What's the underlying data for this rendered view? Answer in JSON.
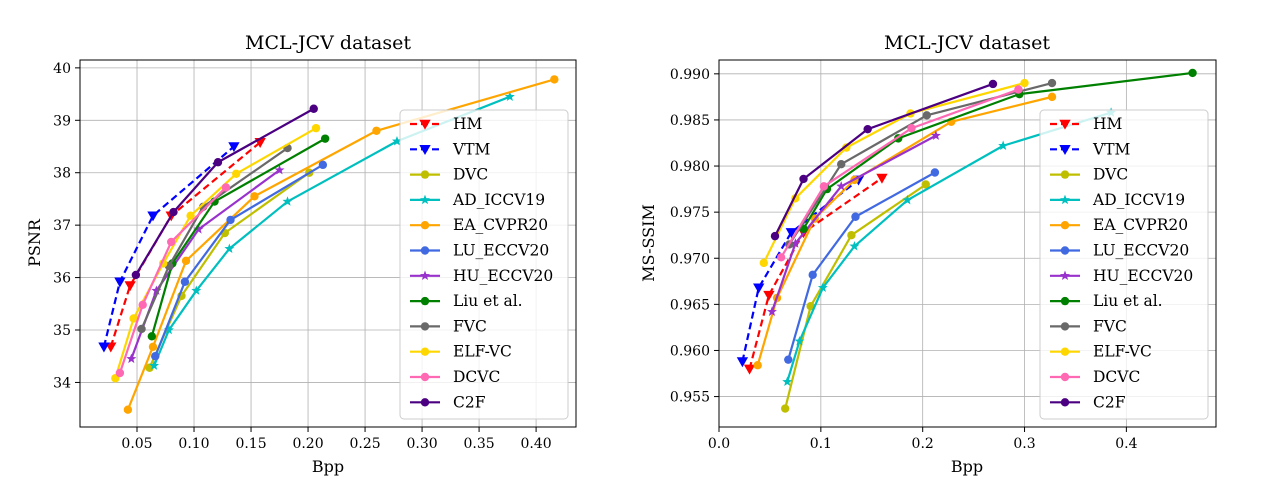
{
  "legend_entries": [
    {
      "name": "HM",
      "color": "#ff0000",
      "marker": "tri-down",
      "dashed": true
    },
    {
      "name": "VTM",
      "color": "#0000ff",
      "marker": "tri-down",
      "dashed": true
    },
    {
      "name": "DVC",
      "color": "#bfbf00",
      "marker": "circle",
      "dashed": false
    },
    {
      "name": "AD_ICCV19",
      "color": "#00bfbf",
      "marker": "star",
      "dashed": false
    },
    {
      "name": "EA_CVPR20",
      "color": "#ffa500",
      "marker": "circle",
      "dashed": false
    },
    {
      "name": "LU_ECCV20",
      "color": "#4169e1",
      "marker": "circle",
      "dashed": false
    },
    {
      "name": "HU_ECCV20",
      "color": "#9932cc",
      "marker": "star",
      "dashed": false
    },
    {
      "name": "Liu et al.",
      "color": "#008000",
      "marker": "circle",
      "dashed": false
    },
    {
      "name": "FVC",
      "color": "#696969",
      "marker": "circle",
      "dashed": false
    },
    {
      "name": "ELF-VC",
      "color": "#ffd700",
      "marker": "circle",
      "dashed": false
    },
    {
      "name": "DCVC",
      "color": "#ff69b4",
      "marker": "circle",
      "dashed": false
    },
    {
      "name": "C2F",
      "color": "#4b0082",
      "marker": "circle",
      "dashed": false
    }
  ],
  "chart_data": [
    {
      "type": "line",
      "title": "MCL-JCV dataset",
      "xlabel": "Bpp",
      "ylabel": "PSNR",
      "xlim": [
        0.0,
        0.435
      ],
      "ylim": [
        33.15,
        40.15
      ],
      "xticks": [
        0.05,
        0.1,
        0.15,
        0.2,
        0.25,
        0.3,
        0.35,
        0.4
      ],
      "xtick_labels": [
        "0.05",
        "0.10",
        "0.15",
        "0.20",
        "0.25",
        "0.30",
        "0.35",
        "0.40"
      ],
      "yticks": [
        34,
        35,
        36,
        37,
        38,
        39,
        40
      ],
      "ytick_labels": [
        "34",
        "35",
        "36",
        "37",
        "38",
        "39",
        "40"
      ],
      "grid": true,
      "legend_position": "lower-right",
      "series": [
        {
          "name": "HM",
          "x": [
            0.027,
            0.044,
            0.08,
            0.158
          ],
          "y": [
            34.68,
            35.85,
            37.18,
            38.58
          ]
        },
        {
          "name": "VTM",
          "x": [
            0.021,
            0.035,
            0.064,
            0.135
          ],
          "y": [
            34.68,
            35.92,
            37.18,
            38.5
          ]
        },
        {
          "name": "DVC",
          "x": [
            0.061,
            0.089,
            0.127,
            0.201
          ],
          "y": [
            34.28,
            35.65,
            36.85,
            38.0
          ]
        },
        {
          "name": "AD_ICCV19",
          "x": [
            0.065,
            0.078,
            0.102,
            0.131,
            0.182,
            0.278,
            0.377
          ],
          "y": [
            34.32,
            35.0,
            35.75,
            36.55,
            37.45,
            38.6,
            39.45
          ]
        },
        {
          "name": "EA_CVPR20",
          "x": [
            0.042,
            0.064,
            0.093,
            0.153,
            0.26,
            0.416
          ],
          "y": [
            33.48,
            34.68,
            36.32,
            37.55,
            38.8,
            39.78
          ]
        },
        {
          "name": "LU_ECCV20",
          "x": [
            0.066,
            0.092,
            0.132,
            0.213
          ],
          "y": [
            34.5,
            35.92,
            37.1,
            38.15
          ]
        },
        {
          "name": "HU_ECCV20",
          "x": [
            0.045,
            0.067,
            0.104,
            0.175
          ],
          "y": [
            34.45,
            35.75,
            36.92,
            38.05
          ]
        },
        {
          "name": "Liu et al.",
          "x": [
            0.063,
            0.081,
            0.118,
            0.215
          ],
          "y": [
            34.88,
            36.27,
            37.45,
            38.65
          ]
        },
        {
          "name": "FVC",
          "x": [
            0.054,
            0.078,
            0.108,
            0.182
          ],
          "y": [
            35.02,
            36.22,
            37.35,
            38.47
          ]
        },
        {
          "name": "ELF-VC",
          "x": [
            0.031,
            0.047,
            0.073,
            0.097,
            0.137,
            0.207
          ],
          "y": [
            34.08,
            35.22,
            36.27,
            37.18,
            37.98,
            38.85
          ]
        },
        {
          "name": "DCVC",
          "x": [
            0.035,
            0.055,
            0.08,
            0.128
          ],
          "y": [
            34.18,
            35.48,
            36.68,
            37.72
          ]
        },
        {
          "name": "C2F",
          "x": [
            0.049,
            0.082,
            0.121,
            0.205
          ],
          "y": [
            36.05,
            37.25,
            38.2,
            39.22
          ]
        }
      ]
    },
    {
      "type": "line",
      "title": "MCL-JCV dataset",
      "xlabel": "Bpp",
      "ylabel": "MS-SSIM",
      "xlim": [
        0.0,
        0.488
      ],
      "ylim": [
        0.9517,
        0.9915
      ],
      "xticks": [
        0.0,
        0.1,
        0.2,
        0.3,
        0.4
      ],
      "xtick_labels": [
        "0.0",
        "0.1",
        "0.2",
        "0.3",
        "0.4"
      ],
      "yticks": [
        0.955,
        0.96,
        0.965,
        0.97,
        0.975,
        0.98,
        0.985,
        0.99
      ],
      "ytick_labels": [
        "0.955",
        "0.960",
        "0.965",
        "0.970",
        "0.975",
        "0.980",
        "0.985",
        "0.990"
      ],
      "grid": true,
      "legend_position": "lower-right",
      "series": [
        {
          "name": "HM",
          "x": [
            0.03,
            0.049,
            0.083,
            0.16
          ],
          "y": [
            0.958,
            0.966,
            0.9728,
            0.9787
          ]
        },
        {
          "name": "VTM",
          "x": [
            0.023,
            0.039,
            0.071,
            0.137
          ],
          "y": [
            0.9588,
            0.9668,
            0.9728,
            0.9785
          ]
        },
        {
          "name": "DVC",
          "x": [
            0.065,
            0.09,
            0.13,
            0.203
          ],
          "y": [
            0.9537,
            0.9648,
            0.9725,
            0.978
          ]
        },
        {
          "name": "AD_ICCV19",
          "x": [
            0.067,
            0.079,
            0.102,
            0.133,
            0.185,
            0.279,
            0.385
          ],
          "y": [
            0.9566,
            0.961,
            0.9668,
            0.9713,
            0.9763,
            0.9822,
            0.9858
          ]
        },
        {
          "name": "EA_CVPR20",
          "x": [
            0.038,
            0.057,
            0.094,
            0.133,
            0.228,
            0.327
          ],
          "y": [
            0.9584,
            0.9657,
            0.9743,
            0.9785,
            0.9848,
            0.9875
          ]
        },
        {
          "name": "LU_ECCV20",
          "x": [
            0.068,
            0.092,
            0.134,
            0.212
          ],
          "y": [
            0.959,
            0.9682,
            0.9745,
            0.9793
          ]
        },
        {
          "name": "HU_ECCV20",
          "x": [
            0.052,
            0.075,
            0.12,
            0.213
          ],
          "y": [
            0.9642,
            0.9716,
            0.9778,
            0.9833
          ]
        },
        {
          "name": "Liu et al.",
          "x": [
            0.083,
            0.106,
            0.176,
            0.295,
            0.465
          ],
          "y": [
            0.9732,
            0.9775,
            0.983,
            0.9878,
            0.9901
          ]
        },
        {
          "name": "FVC",
          "x": [
            0.069,
            0.12,
            0.204,
            0.327
          ],
          "y": [
            0.9715,
            0.9802,
            0.9855,
            0.989
          ]
        },
        {
          "name": "ELF-VC",
          "x": [
            0.044,
            0.075,
            0.125,
            0.188,
            0.3
          ],
          "y": [
            0.9695,
            0.9765,
            0.982,
            0.9857,
            0.989
          ]
        },
        {
          "name": "DCVC",
          "x": [
            0.061,
            0.103,
            0.189,
            0.294
          ],
          "y": [
            0.9701,
            0.9778,
            0.9841,
            0.9883
          ]
        },
        {
          "name": "C2F",
          "x": [
            0.055,
            0.083,
            0.146,
            0.269
          ],
          "y": [
            0.9724,
            0.9786,
            0.984,
            0.9889
          ]
        }
      ]
    }
  ]
}
